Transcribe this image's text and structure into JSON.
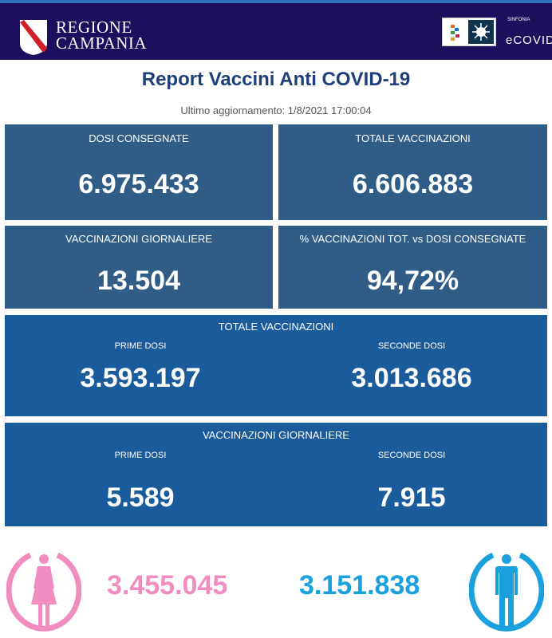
{
  "header": {
    "region_line1": "REGIONE",
    "region_line2": "CAMPANIA",
    "partner_small": "SINFONIA",
    "partner_name": "eCOVID"
  },
  "title": "Report Vaccini Anti COVID-19",
  "updated": "Ultimo aggiornamento: 1/8/2021  17:00:04",
  "cards": {
    "dosi_consegnate": {
      "label": "DOSI  CONSEGNATE",
      "value": "6.975.433"
    },
    "totale_vaccinazioni": {
      "label": "TOTALE VACCINAZIONI",
      "value": "6.606.883"
    },
    "vaccinazioni_giornaliere": {
      "label": "VACCINAZIONI GIORNALIERE",
      "value": "13.504"
    },
    "percentuale": {
      "label": "% VACCINAZIONI TOT. vs DOSI CONSEGNATE",
      "value": "94,72%"
    }
  },
  "totale_split": {
    "label": "TOTALE VACCINAZIONI",
    "prime_label": "PRIME DOSI",
    "prime_value": "3.593.197",
    "seconde_label": "SECONDE DOSI",
    "seconde_value": "3.013.686"
  },
  "giornaliere_split": {
    "label": "VACCINAZIONI GIORNALIERE",
    "prime_label": "PRIME DOSI",
    "prime_value": "5.589",
    "seconde_label": "SECONDE DOSI",
    "seconde_value": "7.915"
  },
  "gender": {
    "female_value": "3.455.045",
    "male_value": "3.151.838",
    "female_color": "#f08cc0",
    "male_color": "#1aa0dc"
  }
}
